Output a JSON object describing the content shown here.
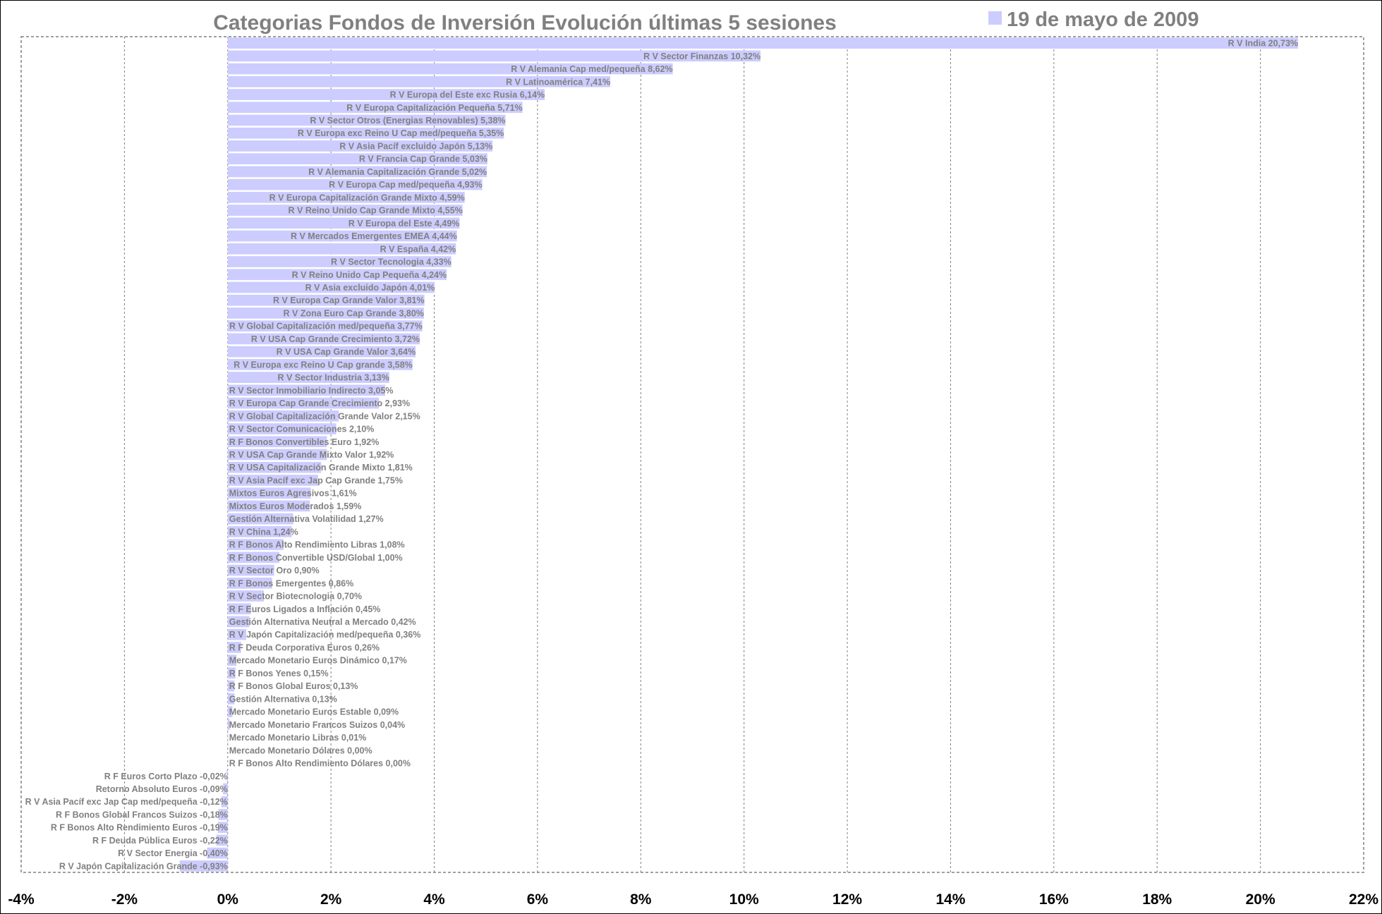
{
  "chart_data": {
    "type": "bar",
    "orientation": "horizontal",
    "title": "Categorias Fondos de Inversión Evolución últimas 5 sesiones",
    "legend": {
      "label": "19 de mayo de 2009",
      "placement": "top-right"
    },
    "xlim": [
      -4,
      22
    ],
    "xticks": [
      -4,
      -2,
      0,
      2,
      4,
      6,
      8,
      10,
      12,
      14,
      16,
      18,
      20,
      22
    ],
    "xtick_labels": [
      "-4%",
      "-2%",
      "0%",
      "2%",
      "4%",
      "6%",
      "8%",
      "10%",
      "12%",
      "14%",
      "16%",
      "18%",
      "20%",
      "22%"
    ],
    "grid": "vertical dashed",
    "colors": {
      "bar": "#ccccff",
      "label": "#808080",
      "grid": "#808080",
      "axis_text": "#000000"
    },
    "categories": [
      "R V India",
      "R V Sector Finanzas",
      "R V Alemania Cap med/pequeña",
      "R V Latinoamérica",
      "R V Europa del Este exc Rusia",
      "R V Europa Capitalización Pequeña",
      "R V Sector Otros (Energías Renovables)",
      "R V Europa exc Reino U Cap med/pequeña",
      "R V Asia Pacíf excluido Japón",
      "R V Francia Cap Grande",
      "R V Alemania Capitalización Grande",
      "R V Europa Cap med/pequeña",
      "R V Europa Capitalización Grande Mixto",
      "R V Reino Unido Cap Grande Mixto",
      "R V Europa del Este",
      "R V Mercados Emergentes EMEA",
      "R V España",
      "R V Sector Tecnología",
      "R V Reino Unido Cap Pequeña",
      "R V Asia excluido Japón",
      "R V Europa Cap Grande Valor",
      "R V Zona Euro Cap Grande",
      "R V Global Capitalización med/pequeña",
      "R V USA Cap Grande Crecimiento",
      "R V USA Cap Grande Valor",
      "R V Europa exc Reino U Cap grande",
      "R V Sector Industria",
      "R V Sector Inmobiliario Indirecto",
      "R V Europa Cap Grande Crecimiento",
      "R V Global Capitalización Grande Valor",
      "R V Sector Comunicaciones",
      "R F Bonos Convertibles Euro",
      "R V USA Cap Grande Mixto Valor",
      "R V USA Capitalización Grande Mixto",
      "R V Asia Pacíf exc Jap Cap Grande",
      "Mixtos Euros Agresivos",
      "Mixtos Euros Moderados",
      "Gestión Alternativa Volatilidad",
      "R V China",
      "R F Bonos Alto Rendimiento Libras",
      "R F Bonos Convertible USD/Global",
      "R V Sector Oro",
      "R F Bonos Emergentes",
      "R V Sector Biotecnología",
      "R F Euros Ligados a Inflación",
      "Gestión Alternativa Neutral a Mercado",
      "R V Japón Capitalización med/pequeña",
      "R F Deuda Corporativa Euros",
      "Mercado Monetario Euros Dinámico",
      "R F Bonos Yenes",
      "R F Bonos Global Euros",
      "Gestión Alternativa",
      "Mercado Monetario Euros Estable",
      "Mercado Monetario Francos Suizos",
      "Mercado Monetario Libras",
      "Mercado Monetario Dólares",
      "R F Bonos Alto Rendimiento Dólares",
      "R F Euros Corto Plazo",
      "Retorno Absoluto Euros",
      "R V Asia Pacíf exc Jap Cap med/pequeña",
      "R F Bonos Global Francos Suizos",
      "R F Bonos Alto Rendimiento Euros",
      "R F Deuda Pública Euros",
      "R V Sector Energía",
      "R V Japón Capitalización Grande"
    ],
    "values": [
      20.73,
      10.32,
      8.62,
      7.41,
      6.14,
      5.71,
      5.38,
      5.35,
      5.13,
      5.03,
      5.02,
      4.93,
      4.59,
      4.55,
      4.49,
      4.44,
      4.42,
      4.33,
      4.24,
      4.01,
      3.81,
      3.8,
      3.77,
      3.72,
      3.64,
      3.58,
      3.13,
      3.05,
      2.93,
      2.15,
      2.1,
      1.92,
      1.92,
      1.81,
      1.75,
      1.61,
      1.59,
      1.27,
      1.24,
      1.08,
      1.0,
      0.9,
      0.86,
      0.7,
      0.45,
      0.42,
      0.36,
      0.26,
      0.17,
      0.15,
      0.13,
      0.13,
      0.09,
      0.04,
      0.01,
      0.0,
      0.0,
      -0.02,
      -0.09,
      -0.12,
      -0.18,
      -0.19,
      -0.22,
      -0.4,
      -0.93
    ],
    "data_labels": [
      "R V India 20,73%",
      "R V Sector Finanzas 10,32%",
      "R V Alemania Cap med/pequeña 8,62%",
      "R V Latinoamérica 7,41%",
      "R V Europa del Este exc Rusia 6,14%",
      "R V Europa Capitalización Pequeña 5,71%",
      "R V Sector Otros (Energias Renovables) 5,38%",
      "R V Europa exc Reino U Cap med/pequeña 5,35%",
      "R V Asia Pacíf excluido Japón 5,13%",
      "R V Francia Cap Grande 5,03%",
      "R V Alemania Capitalización Grande 5,02%",
      "R V Europa Cap med/pequeña 4,93%",
      "R V Europa Capitalización Grande Mixto 4,59%",
      "R V Reino Unido Cap Grande Mixto 4,55%",
      "R V Europa del Este 4,49%",
      "R V Mercados Emergentes EMEA 4,44%",
      "R V España 4,42%",
      "R V Sector Tecnologia 4,33%",
      "R V Reino Unido Cap Pequeña 4,24%",
      "R V Asia excluido Japón 4,01%",
      "R V Europa Cap Grande Valor 3,81%",
      "R V Zona Euro Cap Grande 3,80%",
      "R V Global Capitalización med/pequeña 3,77%",
      "R V USA Cap Grande Crecimiento 3,72%",
      "R V USA Cap Grande Valor 3,64%",
      "R V Europa exc Reino U Cap grande 3,58%",
      "R V Sector Industria 3,13%",
      "R V Sector Inmobiliario Indirecto 3,05%",
      "R V Europa Cap Grande Crecimiento 2,93%",
      "R V Global Capitalización Grande Valor 2,15%",
      "R V Sector Comunicaciones 2,10%",
      "R F Bonos Convertibles Euro 1,92%",
      "R V USA Cap Grande Mixto Valor 1,92%",
      "R V USA Capitalización Grande Mixto 1,81%",
      "R V Asia Pacíf exc Jap Cap Grande 1,75%",
      "Mixtos Euros Agresivos 1,61%",
      "Mixtos Euros Moderados 1,59%",
      "Gestión Alternativa Volatilidad 1,27%",
      "R V China 1,24%",
      "R F Bonos Alto Rendimiento Libras 1,08%",
      "R F Bonos Convertible USD/Global 1,00%",
      "R V Sector Oro 0,90%",
      "R F Bonos Emergentes 0,86%",
      "R V Sector Biotecnologia 0,70%",
      "R F Euros Ligados a Inflación 0,45%",
      "Gestión Alternativa Neutral a Mercado 0,42%",
      "R V Japón Capitalización med/pequeña 0,36%",
      "R F Deuda Corporativa Euros 0,26%",
      "Mercado Monetario Euros Dinámico 0,17%",
      "R F Bonos Yenes 0,15%",
      "R F Bonos Global Euros 0,13%",
      "Gestión Alternativa 0,13%",
      "Mercado Monetario Euros Estable 0,09%",
      "Mercado Monetario Francos Suizos 0,04%",
      "Mercado Monetario Libras 0,01%",
      "Mercado Monetario Dólares 0,00%",
      "R F Bonos Alto Rendimiento Dólares 0,00%",
      "R F Euros Corto Plazo -0,02%",
      "Retorno Absoluto Euros -0,09%",
      "R V Asia Pacíf exc Jap Cap med/pequeña -0,12%",
      "R F Bonos Global Francos Suizos -0,18%",
      "R F Bonos Alto Rendimiento Euros -0,19%",
      "R F Deuda Pública Euros -0,22%",
      "R V Sector Energia -0,40%",
      "R V Japón Capitalización Grande -0,93%"
    ]
  }
}
